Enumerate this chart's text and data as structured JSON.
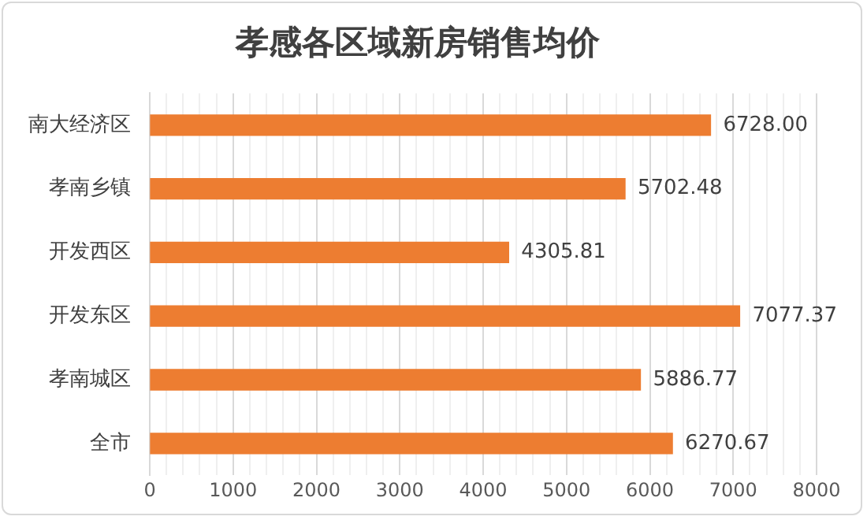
{
  "chart_data": {
    "type": "bar",
    "orientation": "horizontal",
    "title": "孝感各区域新房销售均价",
    "categories": [
      "南大经济区",
      "孝南乡镇",
      "开发西区",
      "开发东区",
      "孝南城区",
      "全市"
    ],
    "values": [
      6728.0,
      5702.48,
      4305.81,
      7077.37,
      5886.77,
      6270.67
    ],
    "value_labels": [
      "6728.00",
      "5702.48",
      "4305.81",
      "7077.37",
      "5886.77",
      "6270.67"
    ],
    "color": "#ed7d31",
    "xlim": [
      0,
      8000
    ],
    "xticks": [
      0,
      {
        "value": 200,
        "label": null
      },
      {
        "value": 400,
        "label": null
      },
      {
        "value": 600,
        "label": null
      },
      {
        "value": 800,
        "label": null
      },
      1000,
      {
        "value": 1200,
        "label": null
      },
      {
        "value": 1400,
        "label": null
      },
      {
        "value": 1600,
        "label": null
      },
      {
        "value": 1800,
        "label": null
      },
      2000,
      {
        "value": 2200,
        "label": null
      },
      {
        "value": 2400,
        "label": null
      },
      {
        "value": 2600,
        "label": null
      },
      {
        "value": 2800,
        "label": null
      },
      3000,
      {
        "value": 3200,
        "label": null
      },
      {
        "value": 3400,
        "label": null
      },
      {
        "value": 3600,
        "label": null
      },
      {
        "value": 3800,
        "label": null
      },
      4000,
      {
        "value": 4200,
        "label": null
      },
      {
        "value": 4400,
        "label": null
      },
      {
        "value": 4600,
        "label": null
      },
      {
        "value": 4800,
        "label": null
      },
      5000,
      {
        "value": 5200,
        "label": null
      },
      {
        "value": 5400,
        "label": null
      },
      {
        "value": 5600,
        "label": null
      },
      {
        "value": 5800,
        "label": null
      },
      6000,
      {
        "value": 6200,
        "label": null
      },
      {
        "value": 6400,
        "label": null
      },
      {
        "value": 6600,
        "label": null
      },
      {
        "value": 6800,
        "label": null
      },
      7000,
      {
        "value": 7200,
        "label": null
      },
      {
        "value": 7400,
        "label": null
      },
      {
        "value": 7600,
        "label": null
      },
      {
        "value": 7800,
        "label": null
      },
      8000
    ],
    "grid": "x"
  }
}
